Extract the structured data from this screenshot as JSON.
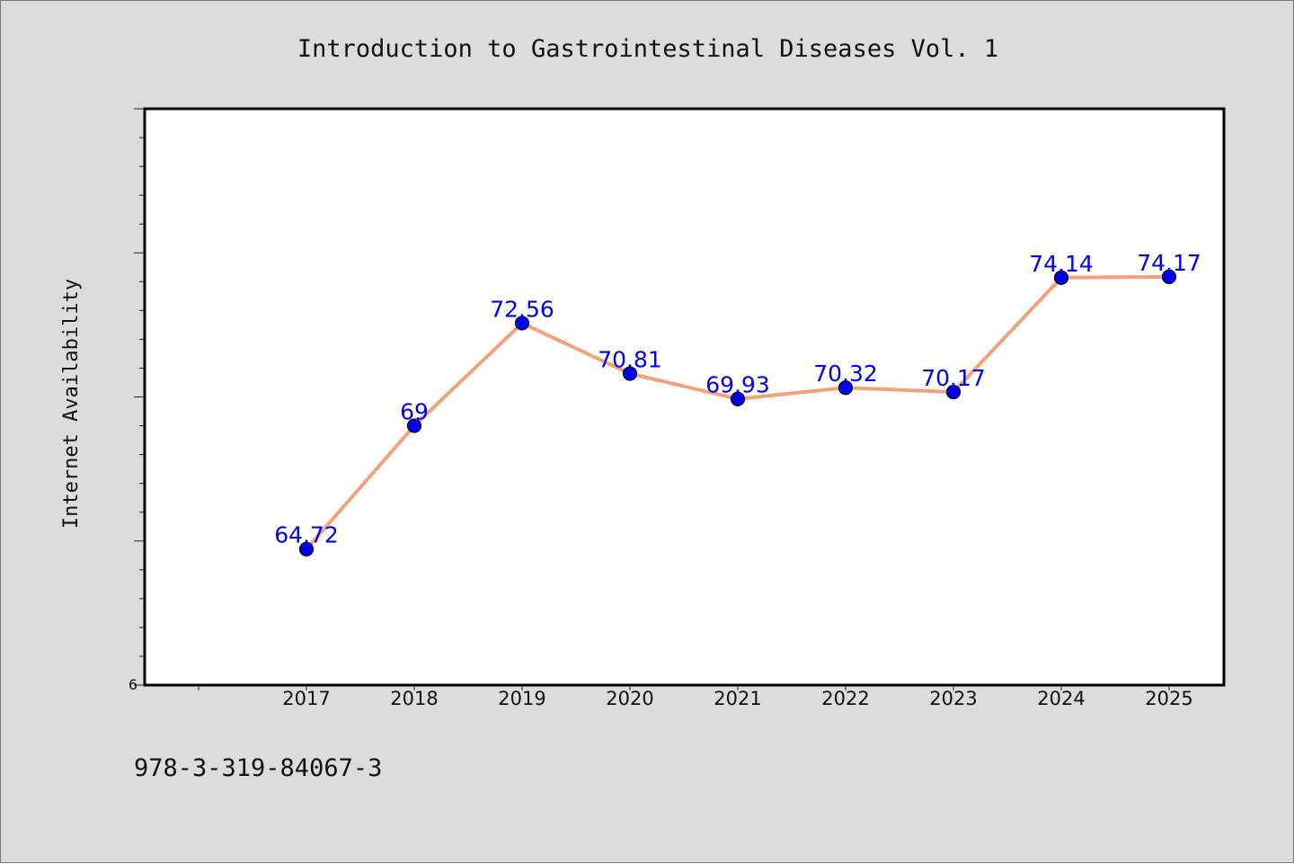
{
  "chart_data": {
    "type": "line",
    "title": "Introduction to Gastrointestinal Diseases Vol. 1",
    "xlabel": "",
    "ylabel": "Internet Availability",
    "categories": [
      "2017",
      "2018",
      "2019",
      "2020",
      "2021",
      "2022",
      "2023",
      "2024",
      "2025"
    ],
    "series": [
      {
        "values": [
          64.72,
          69,
          72.56,
          70.81,
          69.93,
          70.32,
          70.17,
          74.14,
          74.17
        ]
      }
    ],
    "data_labels": [
      "64.72",
      "69",
      "72.56",
      "70.81",
      "69.93",
      "70.32",
      "70.17",
      "74.14",
      "74.17"
    ],
    "ylim": [
      60,
      80
    ],
    "y_tick_labels": [
      "6"
    ],
    "grid": false,
    "legend": "none",
    "line_color": "#f4a07a",
    "marker_color": "#0000ee",
    "label_color": "#0000ee",
    "plot_background": "#ffffff",
    "page_background": "#dcdcdc"
  },
  "footer": {
    "isbn": "978-3-319-84067-3"
  }
}
